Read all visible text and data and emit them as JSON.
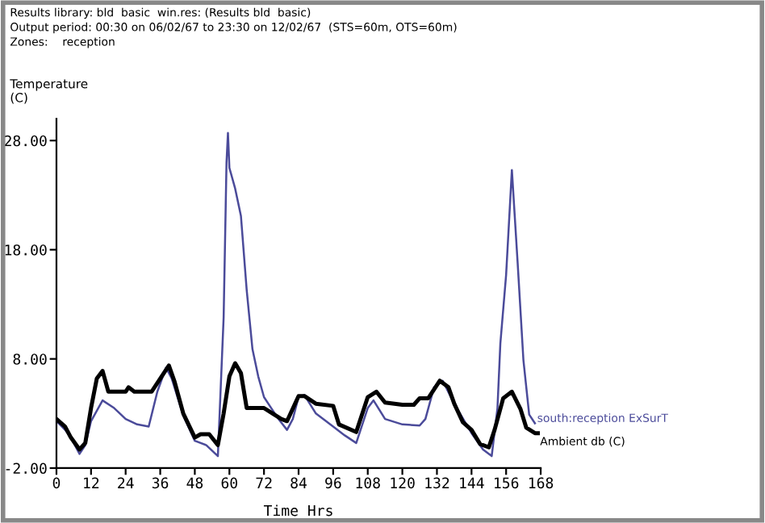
{
  "chart_data": {
    "type": "line",
    "xlabel": "Time Hrs",
    "ylabel": "Temperature\n(C)",
    "annotations": [
      "Results library: bld  basic  win.res: (Results bld  basic)",
      "Output period: 00:30 on 06/02/67 to 23:30 on 12/02/67  (STS=60m, OTS=60m)",
      "Zones:    reception"
    ],
    "xlim": [
      0,
      168
    ],
    "xticks": [
      0,
      12,
      24,
      36,
      48,
      60,
      72,
      84,
      96,
      108,
      120,
      132,
      144,
      156,
      168
    ],
    "ylim": [
      -2,
      30
    ],
    "yticks": [
      {
        "value": -2,
        "label": "-2.00"
      },
      {
        "value": 8,
        "label": "8.00"
      },
      {
        "value": 18,
        "label": "18.00"
      },
      {
        "value": 28,
        "label": "28.00"
      }
    ],
    "grid": false,
    "legend": false,
    "marker": "none",
    "line_style": "solid",
    "series": [
      {
        "name": "south:reception ExSurT",
        "color": "#4b4b9a",
        "x": [
          0,
          3,
          5,
          8,
          10,
          12,
          16,
          20,
          24,
          28,
          32,
          35,
          38,
          40,
          44,
          48,
          52,
          56,
          58,
          59,
          59.5,
          60,
          62,
          64,
          66,
          68,
          70,
          72,
          74,
          77,
          80,
          82,
          84,
          86,
          90,
          96,
          100,
          104,
          108,
          110,
          114,
          120,
          126,
          128,
          131,
          134,
          138,
          144,
          148,
          151,
          153,
          154,
          156,
          158,
          160,
          162,
          164,
          166
        ],
        "values": [
          2.3,
          1.5,
          0.8,
          -0.7,
          0.1,
          2.3,
          4.2,
          3.5,
          2.5,
          2.0,
          1.8,
          5.0,
          7.2,
          6.2,
          2.8,
          0.5,
          0.1,
          -0.9,
          11.8,
          26,
          28.7,
          25.5,
          23.6,
          21.1,
          14.3,
          8.9,
          6.4,
          4.5,
          3.7,
          2.5,
          1.5,
          2.5,
          4.5,
          4.7,
          3.0,
          1.8,
          1.0,
          0.3,
          3.5,
          4.2,
          2.5,
          2.0,
          1.9,
          2.5,
          5.4,
          6.0,
          3.9,
          1.2,
          -0.3,
          -0.9,
          3.5,
          9.4,
          15.7,
          25.3,
          16.8,
          7.9,
          2.9,
          2.1
        ]
      },
      {
        "name": "Ambient db (C)",
        "color": "#000000",
        "x": [
          0,
          3,
          5,
          8,
          10,
          12,
          14,
          16,
          18,
          24,
          25,
          27,
          33,
          36,
          39,
          41,
          44,
          48,
          50,
          53,
          56,
          58,
          60,
          62,
          64,
          66,
          72,
          75,
          78,
          80,
          84,
          86,
          90,
          96,
          98,
          104,
          108,
          111,
          114,
          120,
          124,
          126,
          129,
          133,
          136,
          138,
          141,
          144,
          147,
          150,
          152,
          155,
          158,
          161,
          163,
          166,
          167
        ],
        "values": [
          2.5,
          1.8,
          0.8,
          -0.3,
          0.3,
          3.5,
          6.2,
          6.9,
          5.0,
          5.0,
          5.4,
          5.0,
          5.0,
          6.2,
          7.4,
          5.9,
          3.0,
          0.8,
          1.1,
          1.1,
          0.1,
          3.0,
          6.4,
          7.6,
          6.7,
          3.5,
          3.5,
          3.0,
          2.5,
          2.3,
          4.6,
          4.6,
          3.9,
          3.7,
          2.0,
          1.3,
          4.5,
          5.0,
          4.0,
          3.8,
          3.8,
          4.4,
          4.4,
          6.0,
          5.4,
          3.9,
          2.2,
          1.5,
          0.2,
          -0.1,
          1.5,
          4.4,
          5.0,
          3.4,
          1.7,
          1.2,
          1.2
        ]
      }
    ]
  }
}
